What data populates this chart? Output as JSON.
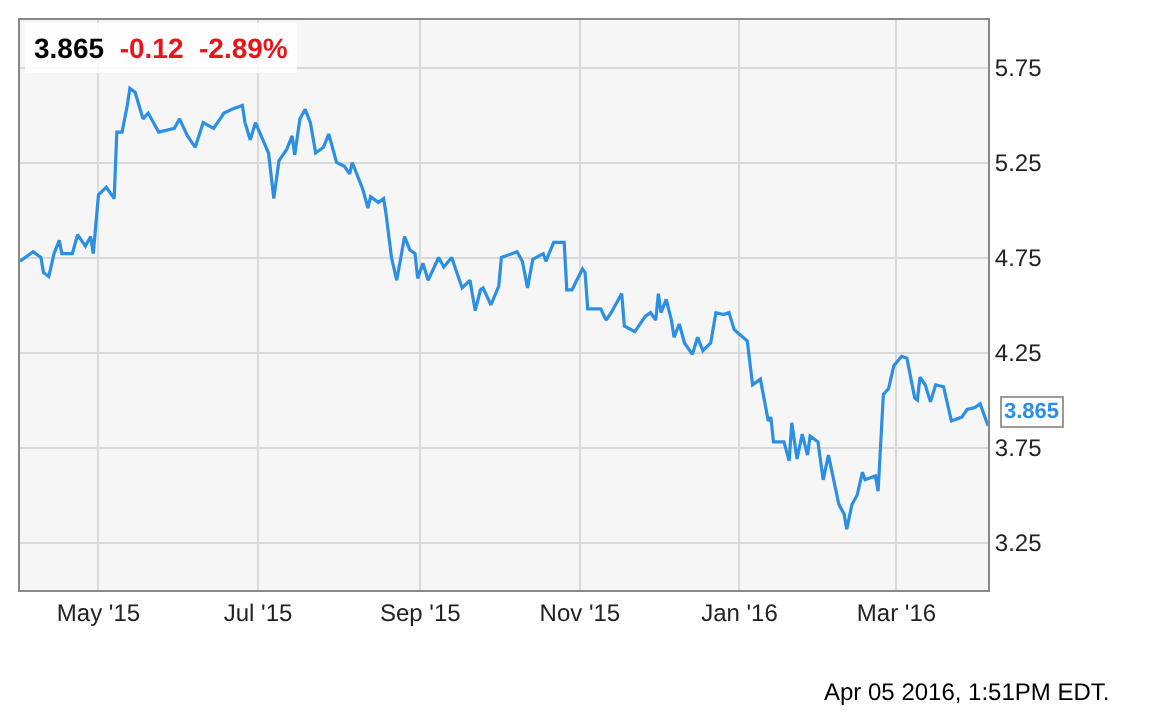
{
  "chart_data": {
    "type": "line",
    "title": "3.865",
    "subtitle": "-0.12  -2.89%",
    "annotations": [
      {
        "text": "3.865",
        "x": "2016-04-05",
        "y": 3.865
      },
      "Apr 05 2016, 1:51PM EDT."
    ],
    "x": [
      "2015-04-01",
      "2015-04-06",
      "2015-04-09",
      "2015-04-10",
      "2015-04-12",
      "2015-04-14",
      "2015-04-16",
      "2015-04-17",
      "2015-04-21",
      "2015-04-23",
      "2015-04-26",
      "2015-04-28",
      "2015-04-29",
      "2015-05-01",
      "2015-05-04",
      "2015-05-07",
      "2015-05-08",
      "2015-05-10",
      "2015-05-12",
      "2015-05-13",
      "2015-05-15",
      "2015-05-18",
      "2015-05-20",
      "2015-05-24",
      "2015-05-30",
      "2015-06-01",
      "2015-06-04",
      "2015-06-07",
      "2015-06-10",
      "2015-06-14",
      "2015-06-18",
      "2015-06-21",
      "2015-06-25",
      "2015-06-26",
      "2015-06-28",
      "2015-06-30",
      "2015-07-05",
      "2015-07-07",
      "2015-07-09",
      "2015-07-12",
      "2015-07-14",
      "2015-07-15",
      "2015-07-17",
      "2015-07-19",
      "2015-07-21",
      "2015-07-23",
      "2015-07-26",
      "2015-07-28",
      "2015-07-31",
      "2015-08-03",
      "2015-08-05",
      "2015-08-06",
      "2015-08-10",
      "2015-08-12",
      "2015-08-13",
      "2015-08-16",
      "2015-08-18",
      "2015-08-19",
      "2015-08-21",
      "2015-08-23",
      "2015-08-26",
      "2015-08-28",
      "2015-08-30",
      "2015-08-31",
      "2015-09-02",
      "2015-09-04",
      "2015-09-08",
      "2015-09-10",
      "2015-09-13",
      "2015-09-15",
      "2015-09-17",
      "2015-09-20",
      "2015-09-22",
      "2015-09-24",
      "2015-09-25",
      "2015-09-28",
      "2015-10-01",
      "2015-10-02",
      "2015-10-08",
      "2015-10-10",
      "2015-10-12",
      "2015-10-14",
      "2015-10-18",
      "2015-10-19",
      "2015-10-22",
      "2015-10-26",
      "2015-10-27",
      "2015-10-29",
      "2015-11-02",
      "2015-11-03",
      "2015-11-04",
      "2015-11-07",
      "2015-11-09",
      "2015-11-11",
      "2015-11-13",
      "2015-11-17",
      "2015-11-18",
      "2015-11-22",
      "2015-11-26",
      "2015-11-28",
      "2015-11-30",
      "2015-12-01",
      "2015-12-02",
      "2015-12-04",
      "2015-12-06",
      "2015-12-07",
      "2015-12-09",
      "2015-12-11",
      "2015-12-14",
      "2015-12-16",
      "2015-12-18",
      "2015-12-21",
      "2015-12-23",
      "2015-12-26",
      "2015-12-28",
      "2015-12-30",
      "2016-01-04",
      "2016-01-06",
      "2016-01-09",
      "2016-01-12",
      "2016-01-13",
      "2016-01-14",
      "2016-01-18",
      "2016-01-20",
      "2016-01-21",
      "2016-01-23",
      "2016-01-25",
      "2016-01-27",
      "2016-01-28",
      "2016-01-31",
      "2016-02-02",
      "2016-02-04",
      "2016-02-08",
      "2016-02-10",
      "2016-02-11",
      "2016-02-13",
      "2016-02-15",
      "2016-02-17",
      "2016-02-18",
      "2016-02-22",
      "2016-02-23",
      "2016-02-25",
      "2016-02-27",
      "2016-02-29",
      "2016-03-03",
      "2016-03-05",
      "2016-03-08",
      "2016-03-09",
      "2016-03-10",
      "2016-03-12",
      "2016-03-14",
      "2016-03-16",
      "2016-03-19",
      "2016-03-22",
      "2016-03-26",
      "2016-03-28",
      "2016-03-31",
      "2016-04-02",
      "2016-04-05"
    ],
    "series": [
      {
        "color": "#2b8fe6",
        "values": [
          4.73,
          4.78,
          4.75,
          4.67,
          4.65,
          4.77,
          4.84,
          4.77,
          4.77,
          4.87,
          4.81,
          4.86,
          4.77,
          5.08,
          5.12,
          5.06,
          5.41,
          5.41,
          5.55,
          5.64,
          5.62,
          5.48,
          5.51,
          5.41,
          5.43,
          5.48,
          5.39,
          5.33,
          5.46,
          5.43,
          5.51,
          5.53,
          5.55,
          5.46,
          5.37,
          5.46,
          5.3,
          5.06,
          5.26,
          5.32,
          5.39,
          5.29,
          5.48,
          5.53,
          5.46,
          5.3,
          5.33,
          5.4,
          5.25,
          5.23,
          5.19,
          5.25,
          5.11,
          5.01,
          5.07,
          5.04,
          5.06,
          4.97,
          4.75,
          4.63,
          4.86,
          4.79,
          4.77,
          4.64,
          4.72,
          4.63,
          4.75,
          4.7,
          4.75,
          4.67,
          4.59,
          4.63,
          4.47,
          4.58,
          4.59,
          4.5,
          4.6,
          4.75,
          4.78,
          4.73,
          4.59,
          4.74,
          4.77,
          4.73,
          4.83,
          4.83,
          4.58,
          4.58,
          4.69,
          4.67,
          4.48,
          4.48,
          4.48,
          4.42,
          4.46,
          4.56,
          4.39,
          4.36,
          4.44,
          4.46,
          4.42,
          4.56,
          4.46,
          4.53,
          4.42,
          4.33,
          4.4,
          4.3,
          4.24,
          4.33,
          4.26,
          4.3,
          4.46,
          4.45,
          4.46,
          4.37,
          4.31,
          4.08,
          4.11,
          3.89,
          3.91,
          3.78,
          3.78,
          3.68,
          3.88,
          3.69,
          3.82,
          3.71,
          3.81,
          3.78,
          3.58,
          3.71,
          3.45,
          3.4,
          3.32,
          3.45,
          3.5,
          3.62,
          3.58,
          3.6,
          3.52,
          4.03,
          4.06,
          4.18,
          4.23,
          4.22,
          4.01,
          4.0,
          4.12,
          4.08,
          3.99,
          4.08,
          4.07,
          3.89,
          3.91,
          3.95,
          3.96,
          3.98,
          3.865
        ]
      }
    ],
    "xlim": [
      "2015-04-01",
      "2016-04-05"
    ],
    "xticks": [
      {
        "value": "2015-05-01",
        "label": "May '15"
      },
      {
        "value": "2015-07-01",
        "label": "Jul '15"
      },
      {
        "value": "2015-09-01",
        "label": "Sep '15"
      },
      {
        "value": "2015-11-01",
        "label": "Nov '15"
      },
      {
        "value": "2016-01-01",
        "label": "Jan '16"
      },
      {
        "value": "2016-03-01",
        "label": "Mar '16"
      }
    ],
    "ylim": [
      3.0,
      6.0
    ],
    "yticks": [
      3.25,
      3.75,
      4.25,
      4.75,
      5.25,
      5.75
    ],
    "grid": true,
    "marker": "none",
    "line_style": "solid"
  }
}
